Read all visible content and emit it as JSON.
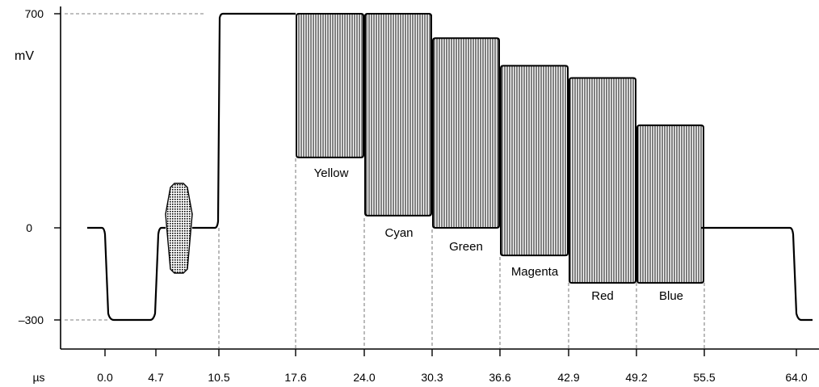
{
  "chart_data": {
    "type": "area",
    "title": "",
    "xlabel": "µs",
    "ylabel": "mV",
    "x_ticks": [
      "0.0",
      "4.7",
      "10.5",
      "17.6",
      "24.0",
      "30.3",
      "36.6",
      "42.9",
      "49.2",
      "55.5",
      "64.0"
    ],
    "y_ticks": [
      "700",
      "0",
      "–300"
    ],
    "ylim": [
      -300,
      700
    ],
    "sync_pulse": {
      "start_us": 0.0,
      "end_us": 4.7,
      "level_mv": -300
    },
    "color_burst": {
      "center_us": 7.3,
      "amplitude_mv": 150
    },
    "white_level": {
      "start_us": 10.5,
      "end_us": 17.6,
      "level_mv": 700
    },
    "bars": [
      {
        "label": "Yellow",
        "start_us": 17.6,
        "end_us": 24.0,
        "max_mv": 700,
        "min_mv": 230
      },
      {
        "label": "Cyan",
        "start_us": 24.0,
        "end_us": 30.3,
        "max_mv": 700,
        "min_mv": 40
      },
      {
        "label": "Green",
        "start_us": 30.3,
        "end_us": 36.6,
        "max_mv": 620,
        "min_mv": 0
      },
      {
        "label": "Magenta",
        "start_us": 36.6,
        "end_us": 42.9,
        "max_mv": 530,
        "min_mv": -90
      },
      {
        "label": "Red",
        "start_us": 42.9,
        "end_us": 49.2,
        "max_mv": 490,
        "min_mv": -180
      },
      {
        "label": "Blue",
        "start_us": 49.2,
        "end_us": 55.5,
        "max_mv": 335,
        "min_mv": -180
      }
    ],
    "grid": false,
    "legend": "none"
  }
}
